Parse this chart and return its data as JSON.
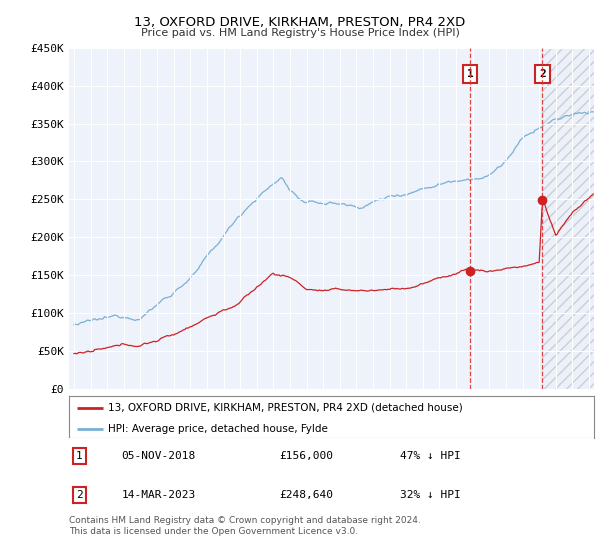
{
  "title": "13, OXFORD DRIVE, KIRKHAM, PRESTON, PR4 2XD",
  "subtitle": "Price paid vs. HM Land Registry's House Price Index (HPI)",
  "ylabel_ticks": [
    "£0",
    "£50K",
    "£100K",
    "£150K",
    "£200K",
    "£250K",
    "£300K",
    "£350K",
    "£400K",
    "£450K"
  ],
  "ylim": [
    0,
    450000
  ],
  "xlim_start": 1994.7,
  "xlim_end": 2026.3,
  "legend_line1": "13, OXFORD DRIVE, KIRKHAM, PRESTON, PR4 2XD (detached house)",
  "legend_line2": "HPI: Average price, detached house, Fylde",
  "sale1_date": "05-NOV-2018",
  "sale1_price": "£156,000",
  "sale1_pct": "47% ↓ HPI",
  "sale1_x": 2018.85,
  "sale1_y": 156000,
  "sale2_date": "14-MAR-2023",
  "sale2_price": "£248,640",
  "sale2_pct": "32% ↓ HPI",
  "sale2_x": 2023.2,
  "sale2_y": 248640,
  "red_color": "#cc2222",
  "blue_color": "#7ab0d4",
  "background_color": "#eef2fb",
  "hatch_color": "#dde4f0",
  "footnote": "Contains HM Land Registry data © Crown copyright and database right 2024.\nThis data is licensed under the Open Government Licence v3.0."
}
